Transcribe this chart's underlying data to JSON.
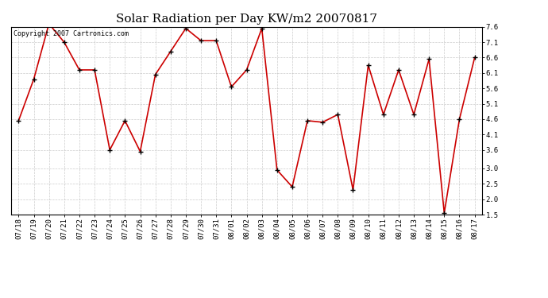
{
  "title": "Solar Radiation per Day KW/m2 20070817",
  "copyright_text": "Copyright 2007 Cartronics.com",
  "dates": [
    "07/18",
    "07/19",
    "07/20",
    "07/21",
    "07/22",
    "07/23",
    "07/24",
    "07/25",
    "07/26",
    "07/27",
    "07/28",
    "07/29",
    "07/30",
    "07/31",
    "08/01",
    "08/02",
    "08/03",
    "08/04",
    "08/05",
    "08/06",
    "08/07",
    "08/08",
    "08/09",
    "08/10",
    "08/11",
    "08/12",
    "08/13",
    "08/14",
    "08/15",
    "08/16",
    "08/17"
  ],
  "values": [
    4.55,
    5.9,
    7.7,
    7.1,
    6.2,
    6.2,
    3.6,
    4.55,
    3.55,
    6.05,
    6.8,
    7.55,
    7.15,
    7.15,
    5.65,
    6.2,
    7.55,
    2.95,
    2.4,
    4.55,
    4.5,
    4.75,
    2.3,
    6.35,
    4.75,
    6.2,
    4.75,
    6.55,
    1.55,
    4.6,
    6.6
  ],
  "line_color": "#cc0000",
  "marker_color": "#000000",
  "bg_color": "#ffffff",
  "grid_color": "#aaaaaa",
  "ylim": [
    1.5,
    7.6
  ],
  "yticks": [
    1.5,
    2.0,
    2.5,
    3.0,
    3.6,
    4.1,
    4.6,
    5.1,
    5.6,
    6.1,
    6.6,
    7.1,
    7.6
  ],
  "ytick_labels": [
    "1.5",
    "2.0",
    "2.5",
    "3.0",
    "3.6",
    "4.1",
    "4.6",
    "5.1",
    "5.6",
    "6.1",
    "6.6",
    "7.1",
    "7.6"
  ],
  "title_fontsize": 11,
  "tick_fontsize": 6.5,
  "copyright_fontsize": 6
}
